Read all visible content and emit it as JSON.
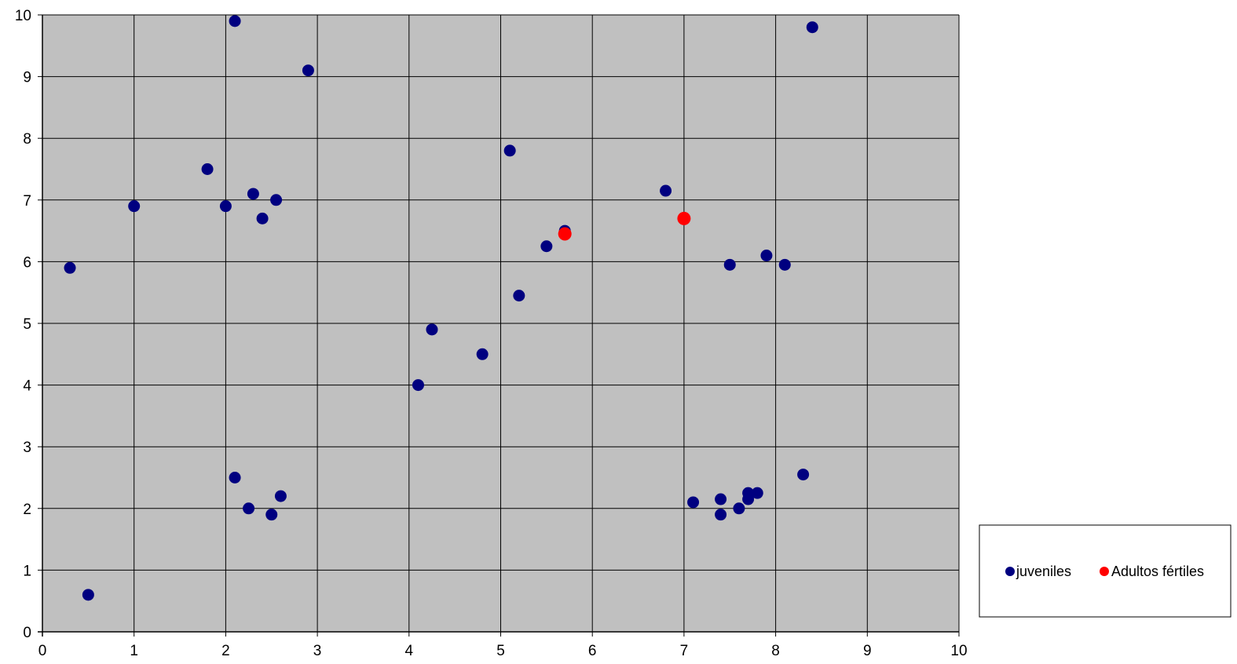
{
  "chart_data": {
    "type": "scatter",
    "title": "",
    "xlabel": "",
    "ylabel": "",
    "xlim": [
      0,
      10
    ],
    "ylim": [
      0,
      10
    ],
    "x_ticks": [
      0,
      1,
      2,
      3,
      4,
      5,
      6,
      7,
      8,
      9,
      10
    ],
    "y_ticks": [
      0,
      1,
      2,
      3,
      4,
      5,
      6,
      7,
      8,
      9,
      10
    ],
    "grid": true,
    "plot_background": "#c0c0c0",
    "legend_position": "bottom-right",
    "series": [
      {
        "name": "juveniles",
        "color": "#000080",
        "points": [
          [
            0.3,
            5.9
          ],
          [
            0.5,
            0.6
          ],
          [
            1.0,
            6.9
          ],
          [
            1.8,
            7.5
          ],
          [
            2.0,
            6.9
          ],
          [
            2.1,
            9.9
          ],
          [
            2.3,
            7.1
          ],
          [
            2.4,
            6.7
          ],
          [
            2.55,
            7.0
          ],
          [
            2.9,
            9.1
          ],
          [
            2.1,
            2.5
          ],
          [
            2.25,
            2.0
          ],
          [
            2.5,
            1.9
          ],
          [
            2.6,
            2.2
          ],
          [
            4.1,
            4.0
          ],
          [
            4.25,
            4.9
          ],
          [
            4.8,
            4.5
          ],
          [
            5.1,
            7.8
          ],
          [
            5.2,
            5.45
          ],
          [
            5.5,
            6.25
          ],
          [
            5.7,
            6.5
          ],
          [
            6.8,
            7.15
          ],
          [
            7.5,
            5.95
          ],
          [
            7.9,
            6.1
          ],
          [
            8.1,
            5.95
          ],
          [
            8.4,
            9.8
          ],
          [
            7.1,
            2.1
          ],
          [
            7.4,
            2.15
          ],
          [
            7.4,
            1.9
          ],
          [
            7.6,
            2.0
          ],
          [
            7.7,
            2.25
          ],
          [
            7.7,
            2.15
          ],
          [
            7.8,
            2.25
          ],
          [
            8.3,
            2.55
          ]
        ]
      },
      {
        "name": "Adultos fértiles",
        "color": "#ff0000",
        "points": [
          [
            5.7,
            6.45
          ],
          [
            7.0,
            6.7
          ]
        ]
      }
    ]
  }
}
